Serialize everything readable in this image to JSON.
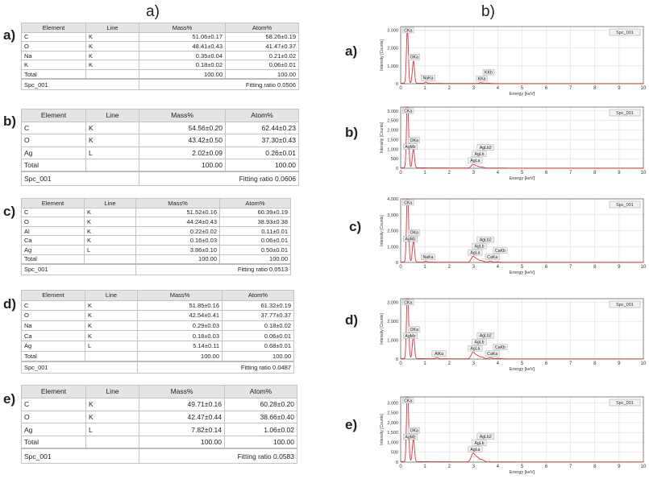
{
  "headings": {
    "tables": "a)",
    "spectra": "b)"
  },
  "colors": {
    "spectrum": "#e0303a",
    "axis": "#555555",
    "grid": "#d8d8d8",
    "peak_label_fill": "#eeeeee",
    "header_fill": "#e4e4e4"
  },
  "tables": [
    {
      "label": "a)",
      "columns": [
        "Element",
        "Line",
        "Mass%",
        "Atom%"
      ],
      "rows": [
        [
          "C",
          "K",
          "51.06±0.17",
          "58.26±0.19"
        ],
        [
          "O",
          "K",
          "48.41±0.43",
          "41.47±0.37"
        ],
        [
          "Na",
          "K",
          "0.35±0.04",
          "0.21±0.02"
        ],
        [
          "K",
          "K",
          "0.18±0.02",
          "0.06±0.01"
        ],
        [
          "Total",
          "",
          "100.00",
          "100.00"
        ]
      ],
      "footer": {
        "spectrum": "Spc_001",
        "fitting": "Fitting ratio 0.0506"
      }
    },
    {
      "label": "b)",
      "columns": [
        "Element",
        "Line",
        "Mass%",
        "Atom%"
      ],
      "rows": [
        [
          "C",
          "K",
          "54.56±0.20",
          "62.44±0.23"
        ],
        [
          "O",
          "K",
          "43.42±0.50",
          "37.30±0.43"
        ],
        [
          "Ag",
          "L",
          "2.02±0.09",
          "0.26±0.01"
        ],
        [
          "Total",
          "",
          "100.00",
          "100.00"
        ]
      ],
      "footer": {
        "spectrum": "Spc_001",
        "fitting": "Fitting ratio 0.0606"
      }
    },
    {
      "label": "c)",
      "columns": [
        "Element",
        "Line",
        "Mass%",
        "Atom%"
      ],
      "rows": [
        [
          "C",
          "K",
          "51.52±0.16",
          "60.39±0.19"
        ],
        [
          "O",
          "K",
          "44.24±0.43",
          "38.93±0.38"
        ],
        [
          "Al",
          "K",
          "0.22±0.02",
          "0.11±0.01"
        ],
        [
          "Ca",
          "K",
          "0.16±0.03",
          "0.06±0.01"
        ],
        [
          "Ag",
          "L",
          "3.86±0.10",
          "0.50±0.01"
        ],
        [
          "Total",
          "",
          "100.00",
          "100.00"
        ]
      ],
      "footer": {
        "spectrum": "Spc_001",
        "fitting": "Fitting ratio 0.0513"
      }
    },
    {
      "label": "d)",
      "columns": [
        "Element",
        "Line",
        "Mass%",
        "Atom%"
      ],
      "rows": [
        [
          "C",
          "K",
          "51.85±0.16",
          "61.32±0.19"
        ],
        [
          "O",
          "K",
          "42.54±0.41",
          "37.77±0.37"
        ],
        [
          "Na",
          "K",
          "0.29±0.03",
          "0.18±0.02"
        ],
        [
          "Ca",
          "K",
          "0.18±0.03",
          "0.06±0.01"
        ],
        [
          "Ag",
          "L",
          "5.14±0.11",
          "0.68±0.01"
        ],
        [
          "Total",
          "",
          "100.00",
          "100.00"
        ]
      ],
      "footer": {
        "spectrum": "Spc_001",
        "fitting": "Fitting ratio 0.0487"
      }
    },
    {
      "label": "e)",
      "columns": [
        "Element",
        "Line",
        "Mass%",
        "Atom%"
      ],
      "rows": [
        [
          "C",
          "K",
          "49.71±0.16",
          "60.28±0.20"
        ],
        [
          "O",
          "K",
          "42.47±0.44",
          "38.66±0.40"
        ],
        [
          "Ag",
          "L",
          "7.82±0.14",
          "1.06±0.02"
        ],
        [
          "Total",
          "",
          "100.00",
          "100.00"
        ]
      ],
      "footer": {
        "spectrum": "Spc_001",
        "fitting": "Fitting ratio 0.0583"
      }
    }
  ],
  "chart_data": [
    {
      "type": "line",
      "panel": "a)",
      "legend": "Spc_001",
      "xlabel": "Energy [keV]",
      "ylabel": "Intensity [Counts]",
      "xlim": [
        0,
        10
      ],
      "ylim": [
        0,
        3200
      ],
      "xticks": [
        0,
        1,
        2,
        3,
        4,
        5,
        6,
        7,
        8,
        9,
        10
      ],
      "yticks": [
        0,
        1000,
        2000,
        3000
      ],
      "ytick_labels": [
        "0",
        "1,000",
        "2,000",
        "3,000"
      ],
      "peaks": [
        {
          "label": "CKa",
          "energy": 0.277,
          "counts": 3050
        },
        {
          "label": "OKa",
          "energy": 0.525,
          "counts": 1250
        },
        {
          "label": "NaKa",
          "energy": 1.04,
          "counts": 70
        },
        {
          "label": "KKa",
          "energy": 3.31,
          "counts": 40
        },
        {
          "label": "KKb",
          "energy": 3.59,
          "counts": 20
        }
      ]
    },
    {
      "type": "line",
      "panel": "b)",
      "legend": "Spc_001",
      "xlabel": "Energy [keV]",
      "ylabel": "Intensity [Counts]",
      "xlim": [
        0,
        10
      ],
      "ylim": [
        0,
        3200
      ],
      "xticks": [
        0,
        1,
        2,
        3,
        4,
        5,
        6,
        7,
        8,
        9,
        10
      ],
      "yticks": [
        0,
        500,
        1000,
        1500,
        2000,
        2500,
        3000
      ],
      "ytick_labels": [
        "0",
        "500",
        "1,000",
        "1,500",
        "2,000",
        "2,500",
        "3,000"
      ],
      "peaks": [
        {
          "label": "CKa",
          "energy": 0.277,
          "counts": 3050
        },
        {
          "label": "AgMz",
          "energy": 0.31,
          "counts": 900
        },
        {
          "label": "OKa",
          "energy": 0.525,
          "counts": 980
        },
        {
          "label": "AgLa",
          "energy": 2.98,
          "counts": 180
        },
        {
          "label": "AgLb",
          "energy": 3.15,
          "counts": 90
        },
        {
          "label": "AgLb2",
          "energy": 3.35,
          "counts": 50
        }
      ]
    },
    {
      "type": "line",
      "panel": "c)",
      "legend": "Spc_001",
      "xlabel": "Energy [keV]",
      "ylabel": "Intensity [Counts]",
      "xlim": [
        0,
        10
      ],
      "ylim": [
        0,
        4000
      ],
      "xticks": [
        0,
        1,
        2,
        3,
        4,
        5,
        6,
        7,
        8,
        9,
        10
      ],
      "yticks": [
        0,
        1000,
        2000,
        3000,
        4000
      ],
      "ytick_labels": [
        "0",
        "1,000",
        "2,000",
        "3,000",
        "4,000"
      ],
      "peaks": [
        {
          "label": "CKa",
          "energy": 0.277,
          "counts": 3700
        },
        {
          "label": "AgMz",
          "energy": 0.31,
          "counts": 1200
        },
        {
          "label": "OKa",
          "energy": 0.525,
          "counts": 1350
        },
        {
          "label": "NaKa",
          "energy": 1.04,
          "counts": 60
        },
        {
          "label": "AgLa",
          "energy": 2.98,
          "counts": 350
        },
        {
          "label": "AgLb",
          "energy": 3.15,
          "counts": 180
        },
        {
          "label": "AgLb2",
          "energy": 3.35,
          "counts": 90
        },
        {
          "label": "CaKa",
          "energy": 3.69,
          "counts": 60
        },
        {
          "label": "CaKb",
          "energy": 4.01,
          "counts": 30
        }
      ]
    },
    {
      "type": "line",
      "panel": "d)",
      "legend": "Spc_001",
      "xlabel": "Energy [keV]",
      "ylabel": "Intensity [Counts]",
      "xlim": [
        0,
        10
      ],
      "ylim": [
        0,
        3200
      ],
      "xticks": [
        0,
        1,
        2,
        3,
        4,
        5,
        6,
        7,
        8,
        9,
        10
      ],
      "yticks": [
        0,
        1000,
        2000,
        3000
      ],
      "ytick_labels": [
        "0",
        "1,000",
        "2,000",
        "3,000"
      ],
      "peaks": [
        {
          "label": "CKa",
          "energy": 0.277,
          "counts": 3050
        },
        {
          "label": "AgMz",
          "energy": 0.31,
          "counts": 1000
        },
        {
          "label": "OKa",
          "energy": 0.525,
          "counts": 1250
        },
        {
          "label": "AlKa",
          "energy": 1.49,
          "counts": 60
        },
        {
          "label": "AgLa",
          "energy": 2.98,
          "counts": 330
        },
        {
          "label": "AgLb",
          "energy": 3.15,
          "counts": 170
        },
        {
          "label": "AgLb2",
          "energy": 3.35,
          "counts": 90
        },
        {
          "label": "CaKa",
          "energy": 3.69,
          "counts": 60
        },
        {
          "label": "CaKb",
          "energy": 4.01,
          "counts": 30
        }
      ]
    },
    {
      "type": "line",
      "panel": "e)",
      "legend": "Spc_001",
      "xlabel": "Energy [keV]",
      "ylabel": "Intensity [Counts]",
      "xlim": [
        0,
        10
      ],
      "ylim": [
        0,
        3300
      ],
      "xticks": [
        0,
        1,
        2,
        3,
        4,
        5,
        6,
        7,
        8,
        9,
        10
      ],
      "yticks": [
        0,
        500,
        1000,
        1500,
        2000,
        2500,
        3000
      ],
      "ytick_labels": [
        "0",
        "500",
        "1,000",
        "1,500",
        "2,000",
        "2,500",
        "3,000"
      ],
      "peaks": [
        {
          "label": "CKa",
          "energy": 0.277,
          "counts": 3050
        },
        {
          "label": "AgMz",
          "energy": 0.31,
          "counts": 1050
        },
        {
          "label": "OKa",
          "energy": 0.525,
          "counts": 1150
        },
        {
          "label": "AgLa",
          "energy": 2.98,
          "counts": 420
        },
        {
          "label": "AgLb",
          "energy": 3.15,
          "counts": 220
        },
        {
          "label": "AgLb2",
          "energy": 3.35,
          "counts": 110
        }
      ]
    }
  ]
}
